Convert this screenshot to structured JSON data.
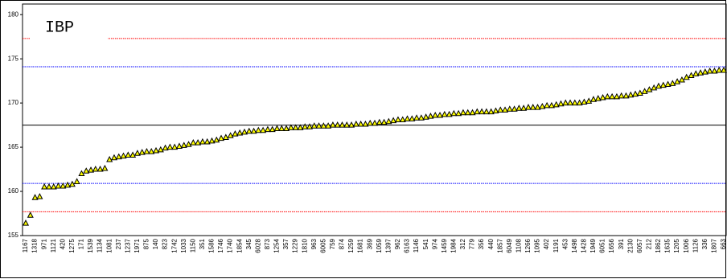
{
  "chart_data": {
    "type": "scatter",
    "title": "IBP",
    "categories": [
      "1167",
      null,
      "1318",
      null,
      "971",
      null,
      "1121",
      null,
      "420",
      null,
      "1275",
      null,
      "171",
      null,
      "1539",
      null,
      "1134",
      null,
      "1081",
      null,
      "237",
      null,
      "1237",
      null,
      "1971",
      null,
      "875",
      null,
      "140",
      null,
      "823",
      null,
      "1742",
      null,
      "1033",
      null,
      "1150",
      null,
      "351",
      null,
      "1586",
      null,
      "1746",
      null,
      "1740",
      null,
      "1854",
      null,
      "345",
      null,
      "6028",
      null,
      "873",
      null,
      "1254",
      null,
      "357",
      null,
      "1229",
      null,
      "1810",
      null,
      "963",
      null,
      "6005",
      null,
      "759",
      null,
      "874",
      null,
      "1259",
      null,
      "1681",
      null,
      "369",
      null,
      "1059",
      null,
      "1397",
      null,
      "962",
      null,
      "6163",
      null,
      "1146",
      null,
      "541",
      null,
      "974",
      null,
      "1459",
      null,
      "1984",
      null,
      "312",
      null,
      "779",
      null,
      "356",
      null,
      "440",
      null,
      "1857",
      null,
      "6049",
      null,
      "1108",
      null,
      "1266",
      null,
      "1095",
      null,
      "402",
      null,
      "1191",
      null,
      "453",
      null,
      "1498",
      null,
      "1428",
      null,
      "1949",
      null,
      "6051",
      null,
      "1656",
      null,
      "391",
      null,
      "2130",
      null,
      "6057",
      null,
      "212",
      null,
      "1862",
      null,
      "1635",
      null,
      "1205",
      null,
      "1006",
      null,
      "1126",
      null,
      "336",
      null,
      "1807",
      null,
      "663"
    ],
    "values": [
      156.4,
      157.3,
      159.3,
      159.4,
      160.5,
      160.5,
      160.5,
      160.6,
      160.6,
      160.7,
      160.8,
      161.1,
      162.0,
      162.3,
      162.4,
      162.5,
      162.5,
      162.6,
      163.6,
      163.8,
      163.9,
      164.0,
      164.1,
      164.1,
      164.3,
      164.4,
      164.5,
      164.5,
      164.6,
      164.7,
      164.9,
      165.0,
      165.0,
      165.1,
      165.2,
      165.3,
      165.5,
      165.5,
      165.6,
      165.6,
      165.7,
      165.8,
      166.0,
      166.1,
      166.3,
      166.5,
      166.6,
      166.7,
      166.8,
      166.8,
      166.9,
      166.9,
      167.0,
      167.0,
      167.1,
      167.1,
      167.1,
      167.2,
      167.2,
      167.2,
      167.3,
      167.3,
      167.4,
      167.4,
      167.4,
      167.4,
      167.5,
      167.5,
      167.5,
      167.5,
      167.5,
      167.6,
      167.6,
      167.6,
      167.7,
      167.7,
      167.8,
      167.8,
      167.9,
      168.0,
      168.1,
      168.1,
      168.2,
      168.2,
      168.3,
      168.3,
      168.4,
      168.5,
      168.6,
      168.6,
      168.7,
      168.7,
      168.8,
      168.8,
      168.9,
      168.9,
      168.9,
      169.0,
      169.0,
      169.0,
      169.0,
      169.1,
      169.2,
      169.2,
      169.3,
      169.3,
      169.4,
      169.4,
      169.5,
      169.5,
      169.5,
      169.6,
      169.7,
      169.7,
      169.8,
      169.9,
      170.0,
      170.0,
      170.0,
      170.0,
      170.1,
      170.2,
      170.4,
      170.5,
      170.6,
      170.7,
      170.7,
      170.7,
      170.8,
      170.8,
      170.9,
      171.0,
      171.1,
      171.3,
      171.5,
      171.7,
      171.9,
      172.0,
      172.1,
      172.2,
      172.4,
      172.6,
      172.9,
      173.1,
      173.3,
      173.4,
      173.5,
      173.6,
      173.6,
      173.7,
      173.7
    ],
    "color": "#ffff00",
    "ylim": [
      155,
      181.2
    ],
    "yticks": [
      155,
      160,
      165,
      170,
      175,
      180
    ],
    "reference_lines": [
      {
        "value": 177.3,
        "color": "#ff0000"
      },
      {
        "value": 174.1,
        "color": "#0000ff"
      },
      {
        "value": 167.5,
        "color": "#000000"
      },
      {
        "value": 160.9,
        "color": "#0000ff"
      },
      {
        "value": 157.7,
        "color": "#ff0000"
      }
    ]
  }
}
